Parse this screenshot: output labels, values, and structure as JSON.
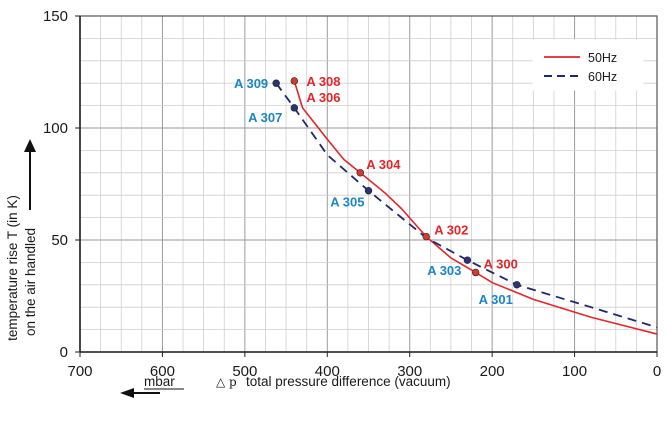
{
  "chart_data": {
    "type": "line",
    "title": "",
    "xlabel_unit": "mbar",
    "xlabel_symbol": "△ p",
    "xlabel": "total pressure difference (vacuum)",
    "ylabel_line1": "temperature rise T (in K)",
    "ylabel_line2": "on the air handled",
    "xlim": [
      700,
      0
    ],
    "ylim": [
      0,
      150
    ],
    "x_ticks": [
      "700",
      "600",
      "500",
      "400",
      "300",
      "200",
      "100",
      "0"
    ],
    "y_ticks": [
      "0",
      "50",
      "100",
      "150"
    ],
    "grid": true,
    "legend_position": "top-right",
    "series": [
      {
        "name": "50Hz",
        "color": "#e3262a",
        "dash": "solid",
        "x": [
          440,
          430,
          400,
          380,
          360,
          330,
          310,
          280,
          250,
          220,
          200,
          150,
          80,
          0
        ],
        "y": [
          121,
          109,
          95,
          86,
          80,
          71,
          64,
          51.5,
          42,
          35.5,
          31,
          23.5,
          15.5,
          8
        ]
      },
      {
        "name": "60Hz",
        "color": "#1f2a6b",
        "dash": "dashed",
        "x": [
          462,
          440,
          400,
          350,
          320,
          280,
          230,
          170,
          80,
          0
        ],
        "y": [
          120,
          109,
          88,
          72,
          63,
          51,
          41,
          30,
          20,
          11
        ]
      }
    ],
    "markers_50hz": [
      {
        "label": "A 308",
        "x": 440,
        "y": 121
      },
      {
        "label": "A 304",
        "x": 360,
        "y": 80
      },
      {
        "label": "A 302",
        "x": 280,
        "y": 51.5
      },
      {
        "label": "A 300",
        "x": 220,
        "y": 35.5
      }
    ],
    "markers_60hz": [
      {
        "label": "A 309",
        "x": 462,
        "y": 120
      },
      {
        "label": "A 307",
        "x": 440,
        "y": 109
      },
      {
        "label": "A 305",
        "x": 350,
        "y": 72
      },
      {
        "label": "A 303",
        "x": 230,
        "y": 41
      },
      {
        "label": "A 301",
        "x": 170,
        "y": 30
      }
    ],
    "unmarked_labels": [
      {
        "label": "A 306",
        "x": 440,
        "y": 109,
        "color": "#e3262a"
      }
    ]
  }
}
